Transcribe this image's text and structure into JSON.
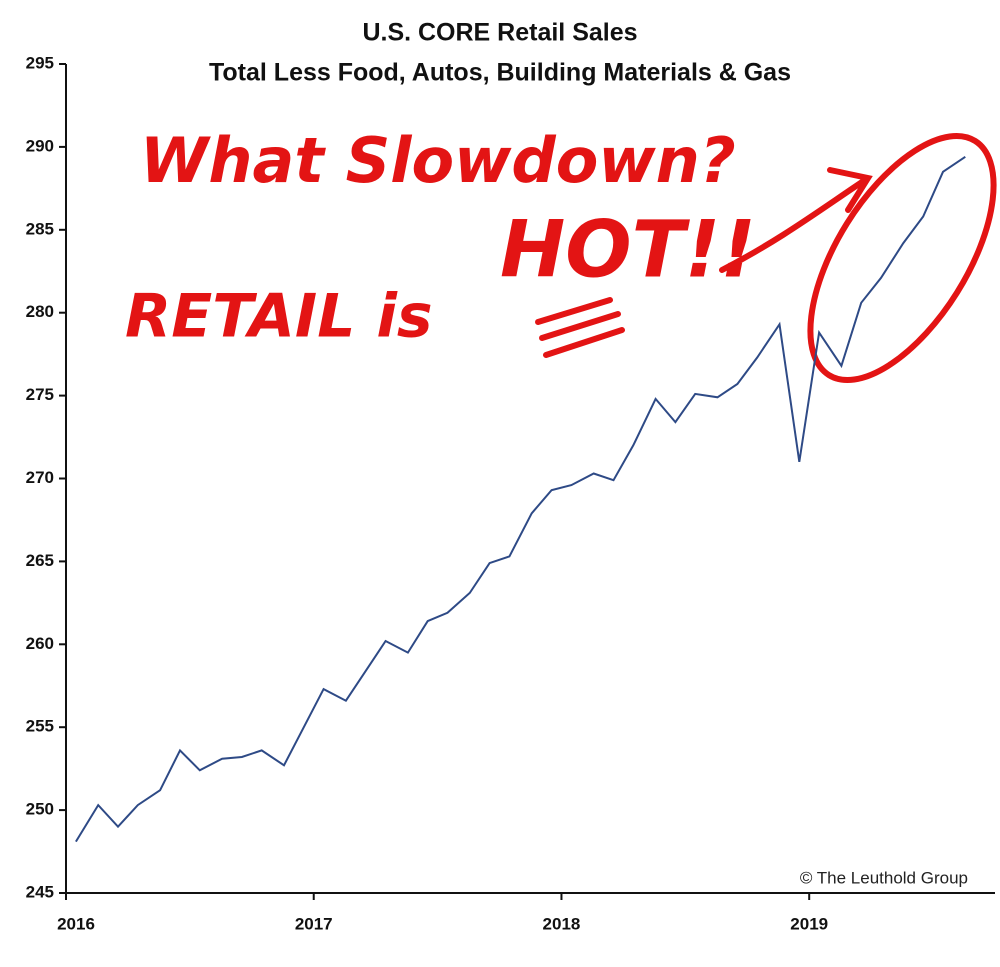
{
  "chart_data": {
    "type": "line",
    "title": "U.S. CORE Retail Sales",
    "subtitle": "Total Less Food, Autos, Building Materials & Gas",
    "annotations": [
      "What Slowdown?",
      "RETAIL is",
      "HOT!!",
      "© The Leuthold Group"
    ],
    "x": [
      2016.04,
      2016.13,
      2016.21,
      2016.29,
      2016.38,
      2016.46,
      2016.54,
      2016.63,
      2016.71,
      2016.79,
      2016.88,
      2016.96,
      2017.04,
      2017.13,
      2017.21,
      2017.29,
      2017.38,
      2017.46,
      2017.54,
      2017.63,
      2017.71,
      2017.79,
      2017.88,
      2017.96,
      2018.04,
      2018.13,
      2018.21,
      2018.29,
      2018.38,
      2018.46,
      2018.54,
      2018.63,
      2018.71,
      2018.79,
      2018.88,
      2018.96,
      2019.04,
      2019.13,
      2019.21,
      2019.29,
      2019.38,
      2019.46,
      2019.54,
      2019.63
    ],
    "series": [
      {
        "color": "#2e4a86",
        "values": [
          248.1,
          250.3,
          249.0,
          250.3,
          251.2,
          253.6,
          252.4,
          253.1,
          253.2,
          253.6,
          252.7,
          255.0,
          257.3,
          256.6,
          258.4,
          260.2,
          259.5,
          261.4,
          261.9,
          263.1,
          264.9,
          265.3,
          267.9,
          269.3,
          269.6,
          270.3,
          269.9,
          272.0,
          274.8,
          273.4,
          275.1,
          274.9,
          275.7,
          277.3,
          279.3,
          271.0,
          278.8,
          276.8,
          280.6,
          282.1,
          284.2,
          285.8,
          288.5,
          289.4
        ]
      }
    ],
    "xlim": [
      2016,
      2019.75
    ],
    "xticks": [
      2016,
      2017,
      2018,
      2019
    ],
    "ylim": [
      245,
      295
    ],
    "yticks": [
      245,
      250,
      255,
      260,
      265,
      270,
      275,
      280,
      285,
      290,
      295
    ],
    "grid": false
  }
}
